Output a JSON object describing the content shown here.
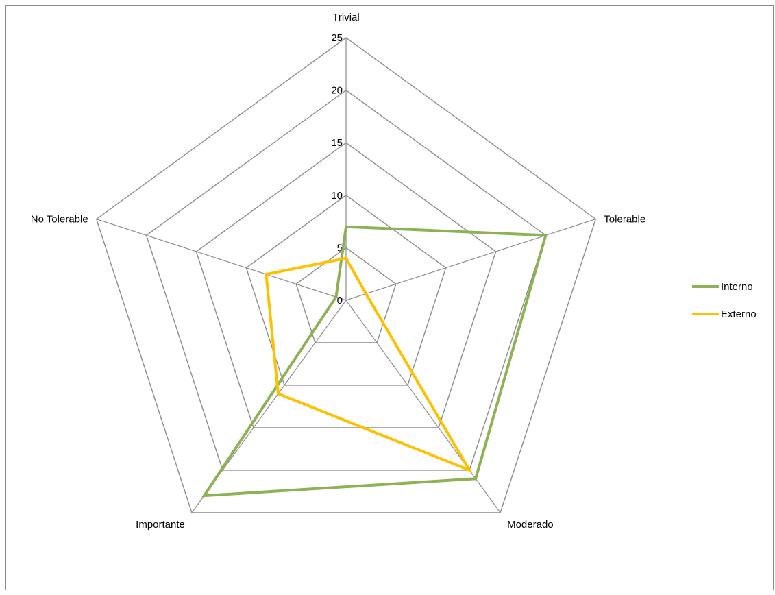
{
  "chart_data": {
    "type": "radar",
    "title": "",
    "categories": [
      "Trivial",
      "Tolerable",
      "Moderado",
      "Importante",
      "No Tolerable"
    ],
    "rlim": [
      0,
      25
    ],
    "ticks": [
      0,
      5,
      10,
      15,
      20,
      25
    ],
    "grid": true,
    "legend_position": "right",
    "series": [
      {
        "name": "Interno",
        "values": [
          7,
          20,
          21,
          23,
          1
        ],
        "color": "#8db255"
      },
      {
        "name": "Externo",
        "values": [
          4,
          2,
          20,
          11,
          8
        ],
        "color": "#ffc000"
      }
    ]
  }
}
